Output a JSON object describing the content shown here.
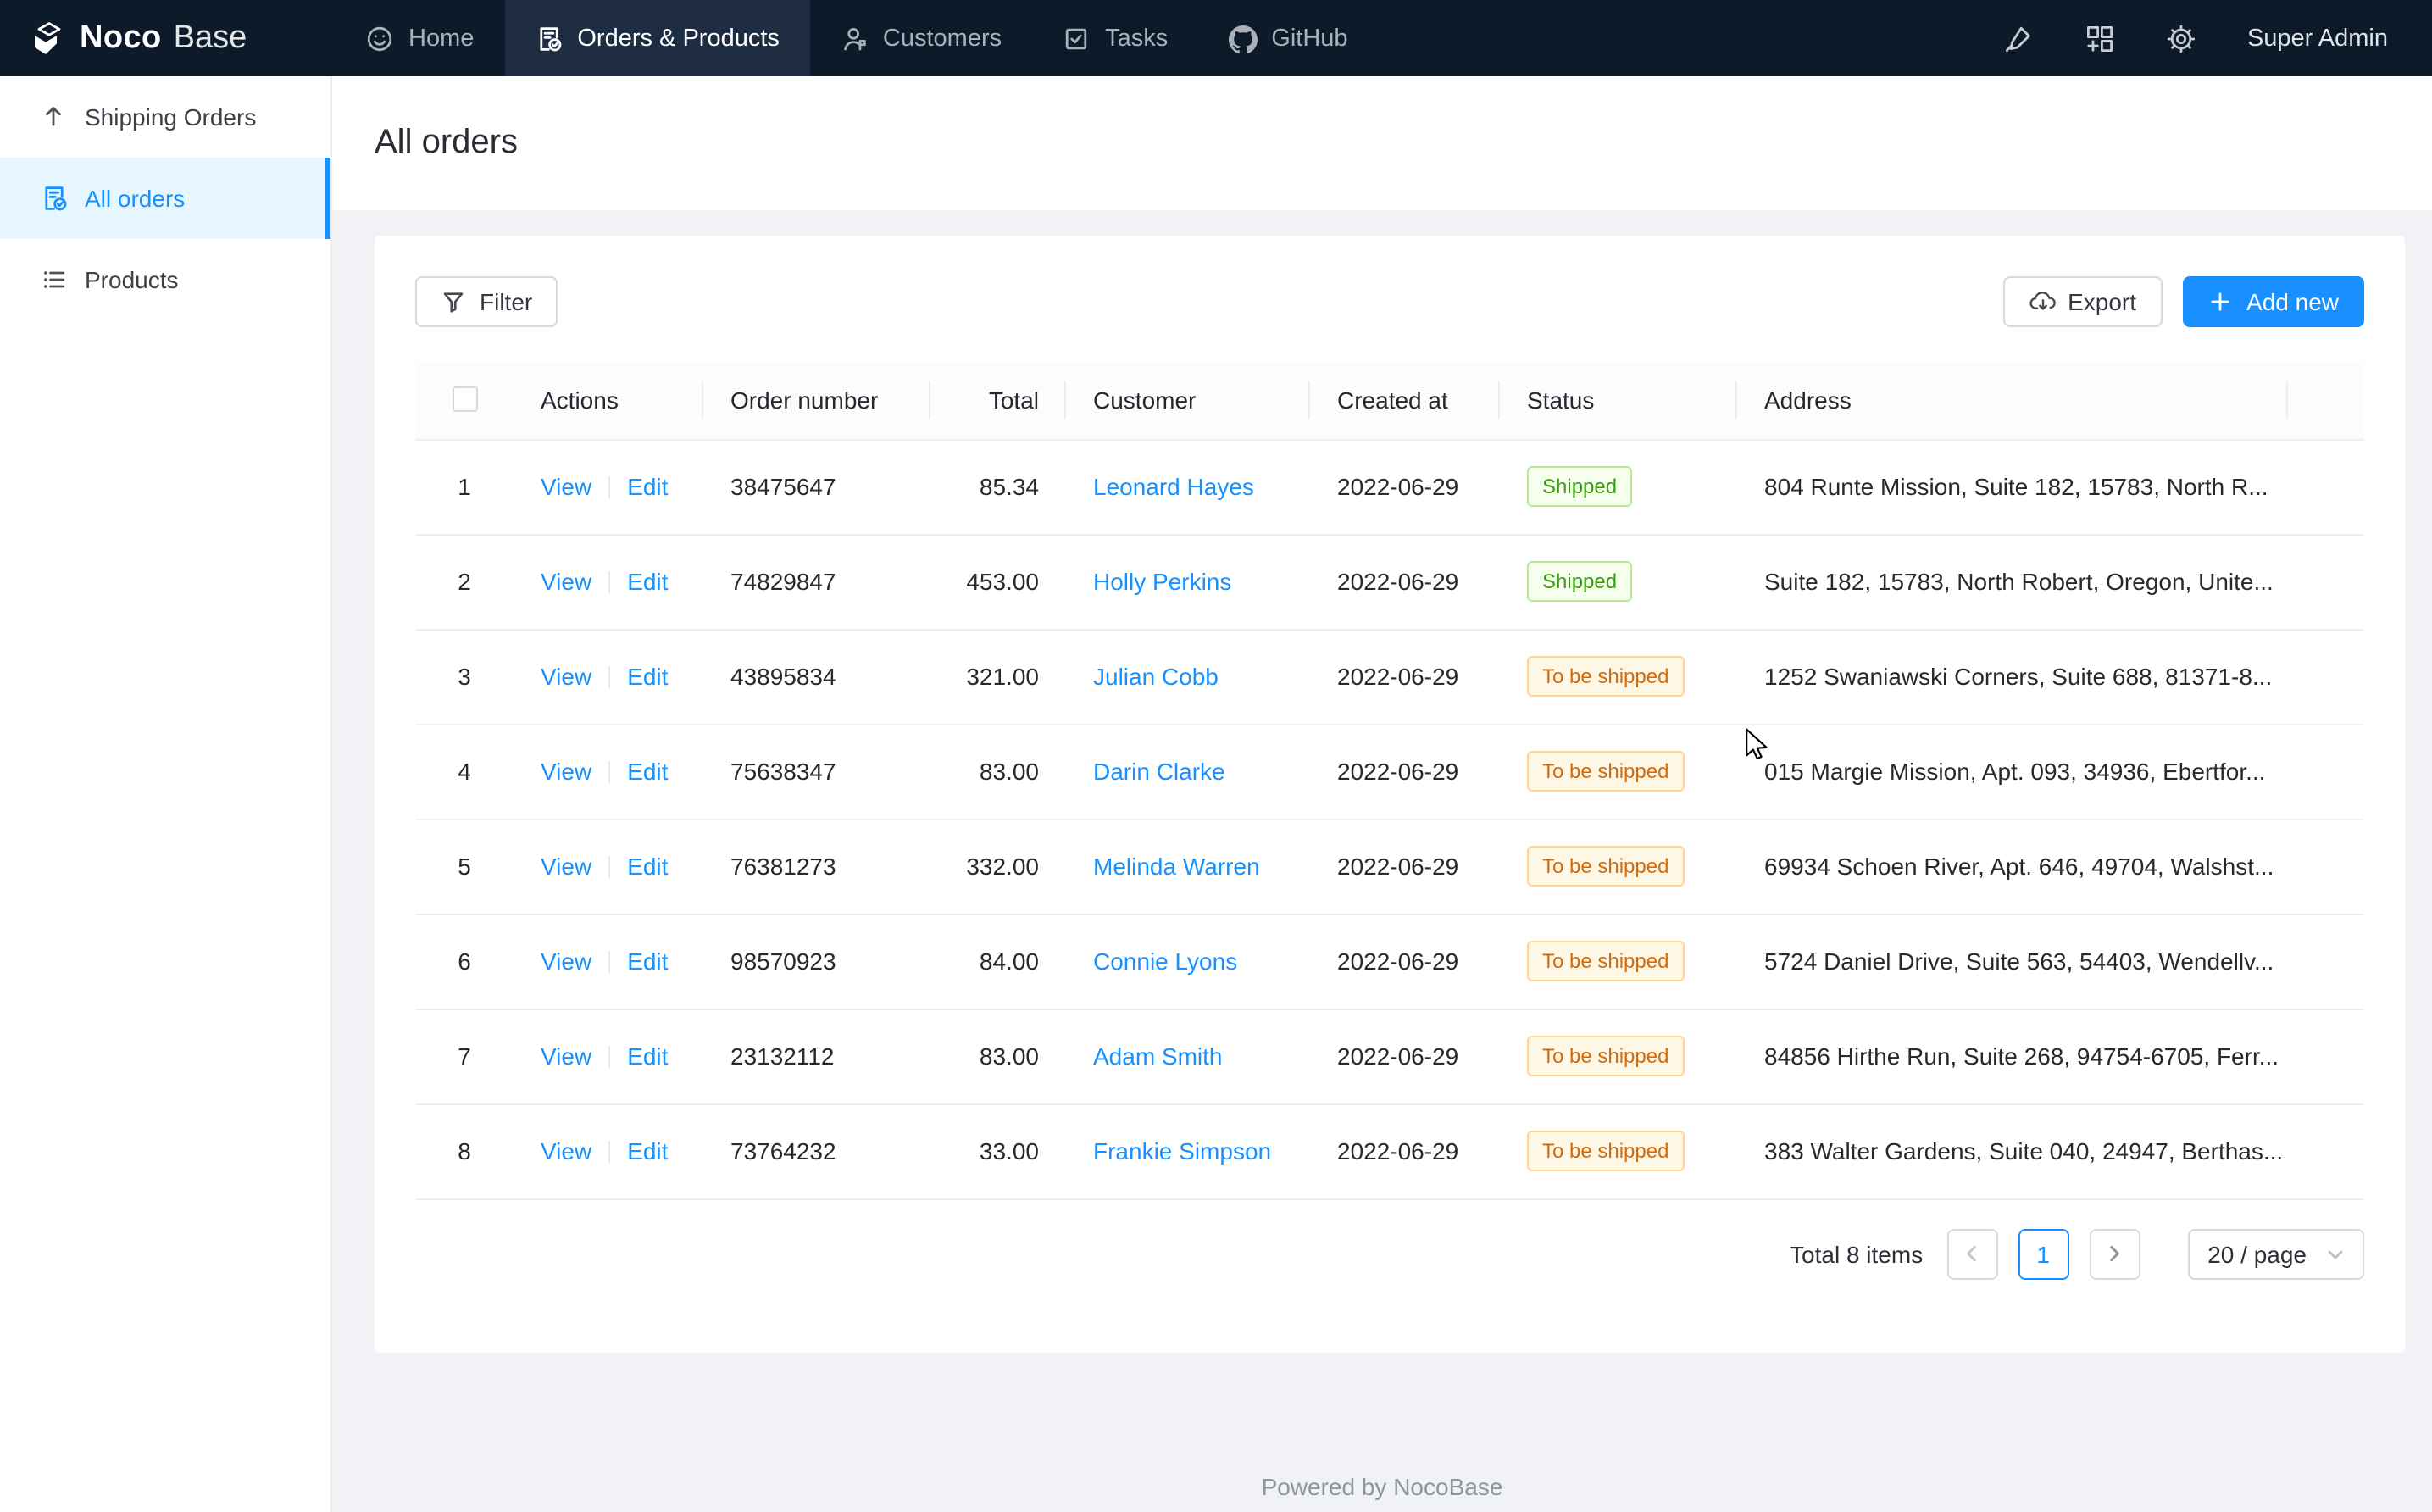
{
  "colors": {
    "accent": "#1890ff",
    "page_bg": "#f0f2f5",
    "nav_bg": "#0c1a29",
    "nav_active_bg": "#1e2d41",
    "sidebar_selected_bg": "#e6f7ff",
    "success_bg": "#f6ffed",
    "success_border": "#b7eb8f",
    "success_text": "#389e0d",
    "warning_bg": "#fff7e6",
    "warning_border": "#ffd591",
    "warning_text": "#d46b08"
  },
  "nav": {
    "brand": {
      "bold": "Noco",
      "light": "Base"
    },
    "items": [
      {
        "label": "Home",
        "icon": "smile-icon",
        "active": false
      },
      {
        "label": "Orders & Products",
        "icon": "order-file-check-icon",
        "active": true
      },
      {
        "label": "Customers",
        "icon": "customers-icon",
        "active": false
      },
      {
        "label": "Tasks",
        "icon": "task-check-icon",
        "active": false
      },
      {
        "label": "GitHub",
        "icon": "github-icon",
        "active": false
      }
    ],
    "action_icons": [
      "highlighter-icon",
      "add-blocks-icon",
      "settings-gear-icon"
    ],
    "user": "Super Admin"
  },
  "sidebar": {
    "items": [
      {
        "label": "Shipping Orders",
        "icon": "arrow-up-icon",
        "selected": false
      },
      {
        "label": "All orders",
        "icon": "order-file-check-icon",
        "selected": true
      },
      {
        "label": "Products",
        "icon": "unordered-list-icon",
        "selected": false
      }
    ]
  },
  "page": {
    "title": "All orders"
  },
  "toolbar": {
    "filter": "Filter",
    "export": "Export",
    "add_new": "Add new"
  },
  "table": {
    "columns": [
      "Actions",
      "Order number",
      "Total",
      "Customer",
      "Created at",
      "Status",
      "Address"
    ],
    "actions": [
      "View",
      "Edit"
    ],
    "rows": [
      {
        "index": 1,
        "order_number": "38475647",
        "total": "85.34",
        "customer": "Leonard Hayes",
        "created_at": "2022-06-29",
        "status": "Shipped",
        "status_type": "success",
        "address": "804 Runte Mission, Suite 182, 15783, North R..."
      },
      {
        "index": 2,
        "order_number": "74829847",
        "total": "453.00",
        "customer": "Holly Perkins",
        "created_at": "2022-06-29",
        "status": "Shipped",
        "status_type": "success",
        "address": "Suite 182, 15783, North Robert, Oregon, Unite..."
      },
      {
        "index": 3,
        "order_number": "43895834",
        "total": "321.00",
        "customer": "Julian Cobb",
        "created_at": "2022-06-29",
        "status": "To be shipped",
        "status_type": "warning",
        "address": "1252 Swaniawski Corners, Suite 688, 81371-8..."
      },
      {
        "index": 4,
        "order_number": "75638347",
        "total": "83.00",
        "customer": "Darin Clarke",
        "created_at": "2022-06-29",
        "status": "To be shipped",
        "status_type": "warning",
        "address": "015 Margie Mission, Apt. 093, 34936, Ebertfor..."
      },
      {
        "index": 5,
        "order_number": "76381273",
        "total": "332.00",
        "customer": "Melinda Warren",
        "created_at": "2022-06-29",
        "status": "To be shipped",
        "status_type": "warning",
        "address": "69934 Schoen River, Apt. 646, 49704, Walshst..."
      },
      {
        "index": 6,
        "order_number": "98570923",
        "total": "84.00",
        "customer": "Connie Lyons",
        "created_at": "2022-06-29",
        "status": "To be shipped",
        "status_type": "warning",
        "address": "5724 Daniel Drive, Suite 563, 54403, Wendellv..."
      },
      {
        "index": 7,
        "order_number": "23132112",
        "total": "83.00",
        "customer": "Adam Smith",
        "created_at": "2022-06-29",
        "status": "To be shipped",
        "status_type": "warning",
        "address": "84856 Hirthe Run, Suite 268, 94754-6705, Ferr..."
      },
      {
        "index": 8,
        "order_number": "73764232",
        "total": "33.00",
        "customer": "Frankie Simpson",
        "created_at": "2022-06-29",
        "status": "To be shipped",
        "status_type": "warning",
        "address": "383 Walter Gardens, Suite 040, 24947, Berthas..."
      }
    ]
  },
  "pagination": {
    "total": "Total 8 items",
    "current_page": "1",
    "page_size": "20 / page"
  },
  "footer": {
    "text": "Powered by NocoBase"
  }
}
